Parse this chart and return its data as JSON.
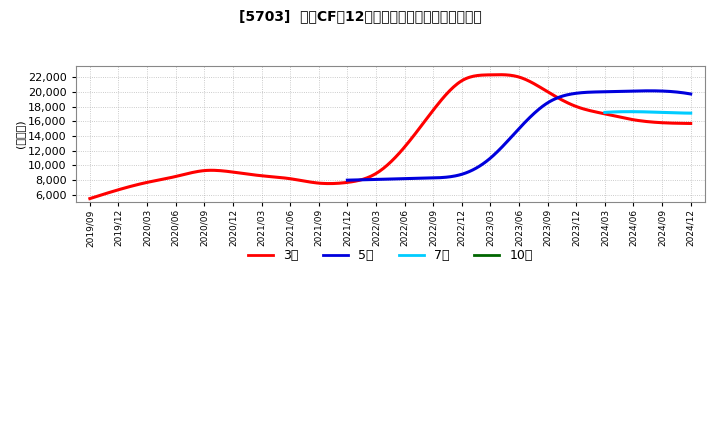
{
  "title": "[5703]  営業CFの12か月移動合計の標準偏差の推移",
  "ylabel": "(百万円)",
  "ylim": [
    5000,
    23500
  ],
  "yticks": [
    6000,
    8000,
    10000,
    12000,
    14000,
    16000,
    18000,
    20000,
    22000
  ],
  "bg_color": "#ffffff",
  "plot_bg_color": "#f5f5f5",
  "dot_color": "#cccccc",
  "legend_labels": [
    "3年",
    "5年",
    "7年",
    "10年"
  ],
  "legend_colors": [
    "#ff0000",
    "#0000dd",
    "#00ccff",
    "#006600"
  ],
  "dates": [
    "2019/09",
    "2019/12",
    "2020/03",
    "2020/06",
    "2020/09",
    "2020/12",
    "2021/03",
    "2021/06",
    "2021/09",
    "2021/12",
    "2022/03",
    "2022/06",
    "2022/09",
    "2022/12",
    "2023/03",
    "2023/06",
    "2023/09",
    "2023/12",
    "2024/03",
    "2024/06",
    "2024/09",
    "2024/12"
  ],
  "series_3y": [
    5500,
    6700,
    7700,
    8500,
    9300,
    9100,
    8600,
    8200,
    7600,
    7700,
    8900,
    12500,
    17500,
    21500,
    22300,
    22000,
    20000,
    18000,
    17000,
    16200,
    15800,
    15700
  ],
  "series_5y": [
    null,
    null,
    null,
    null,
    null,
    null,
    null,
    null,
    null,
    8000,
    8100,
    8200,
    8300,
    8800,
    11000,
    15000,
    18500,
    19800,
    20000,
    20100,
    20100,
    19700
  ],
  "series_7y": [
    null,
    null,
    null,
    null,
    null,
    null,
    null,
    null,
    null,
    null,
    null,
    null,
    null,
    null,
    null,
    null,
    null,
    null,
    17200,
    17300,
    17200,
    17100
  ],
  "series_10y": [
    null,
    null,
    null,
    null,
    null,
    null,
    null,
    null,
    null,
    null,
    null,
    null,
    null,
    null,
    null,
    null,
    null,
    null,
    null,
    null,
    null,
    null
  ]
}
